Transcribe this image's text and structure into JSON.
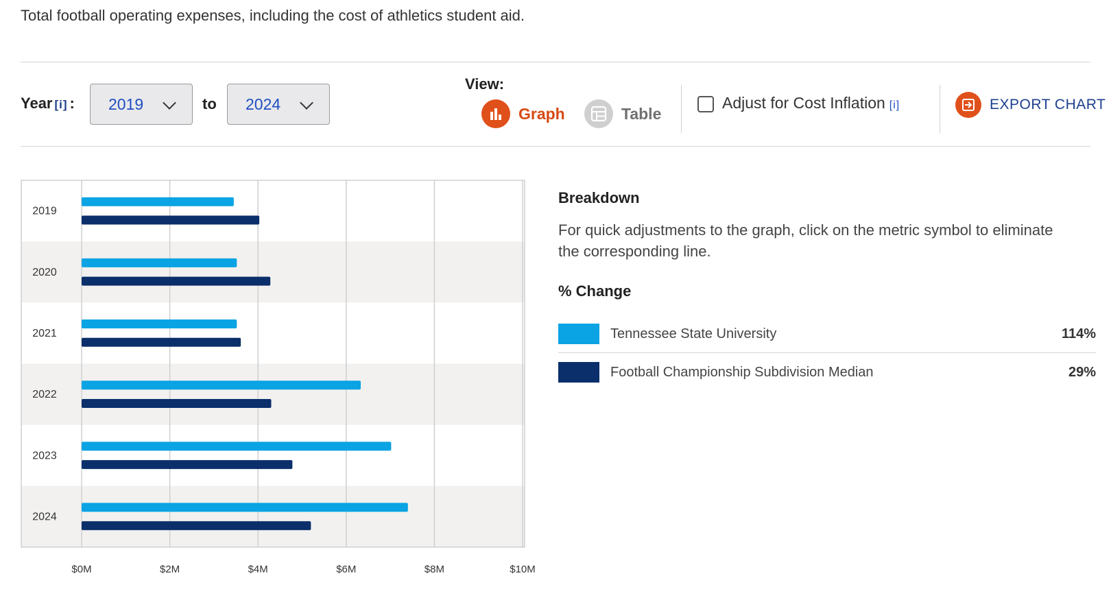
{
  "description": "Total football operating expenses, including the cost of athletics student aid.",
  "controls": {
    "year_label": "Year",
    "year_info": "[i]",
    "year_colon": ":",
    "from_year": "2019",
    "to_label": "to",
    "to_year": "2024",
    "view_label": "View:",
    "graph_label": "Graph",
    "table_label": "Table",
    "adjust_label": "Adjust for Cost Inflation",
    "adjust_info": "[i]",
    "adjust_checked": false,
    "export_label": "EXPORT CHART",
    "active_view": "graph",
    "icons": [
      "chevron-down-icon",
      "bar-chart-icon",
      "table-icon",
      "checkbox-icon",
      "export-icon"
    ]
  },
  "breakdown": {
    "title": "Breakdown",
    "text": "For quick adjustments to the graph, click on the metric symbol to eliminate the corresponding line.",
    "change_title": "% Change",
    "items": [
      {
        "name": "Tennessee State University",
        "color": "#0aa3e3",
        "change": "114%"
      },
      {
        "name": "Football Championship Subdivision Median",
        "color": "#0b2f6b",
        "change": "29%"
      }
    ]
  },
  "chart_data": {
    "type": "bar",
    "orientation": "horizontal",
    "categories": [
      "2019",
      "2020",
      "2021",
      "2022",
      "2023",
      "2024"
    ],
    "series": [
      {
        "name": "Tennessee State University",
        "color": "#0aa3e3",
        "values": [
          3.45,
          3.52,
          3.52,
          6.33,
          7.02,
          7.4
        ]
      },
      {
        "name": "Football Championship Subdivision Median",
        "color": "#0b2f6b",
        "values": [
          4.03,
          4.28,
          3.61,
          4.3,
          4.78,
          5.2
        ]
      }
    ],
    "xlim": [
      0,
      10
    ],
    "xticks": [
      "$0M",
      "$2M",
      "$4M",
      "$6M",
      "$8M",
      "$10M"
    ],
    "xtick_values": [
      0,
      2,
      4,
      6,
      8,
      10
    ],
    "grid": true,
    "legend": "right"
  }
}
